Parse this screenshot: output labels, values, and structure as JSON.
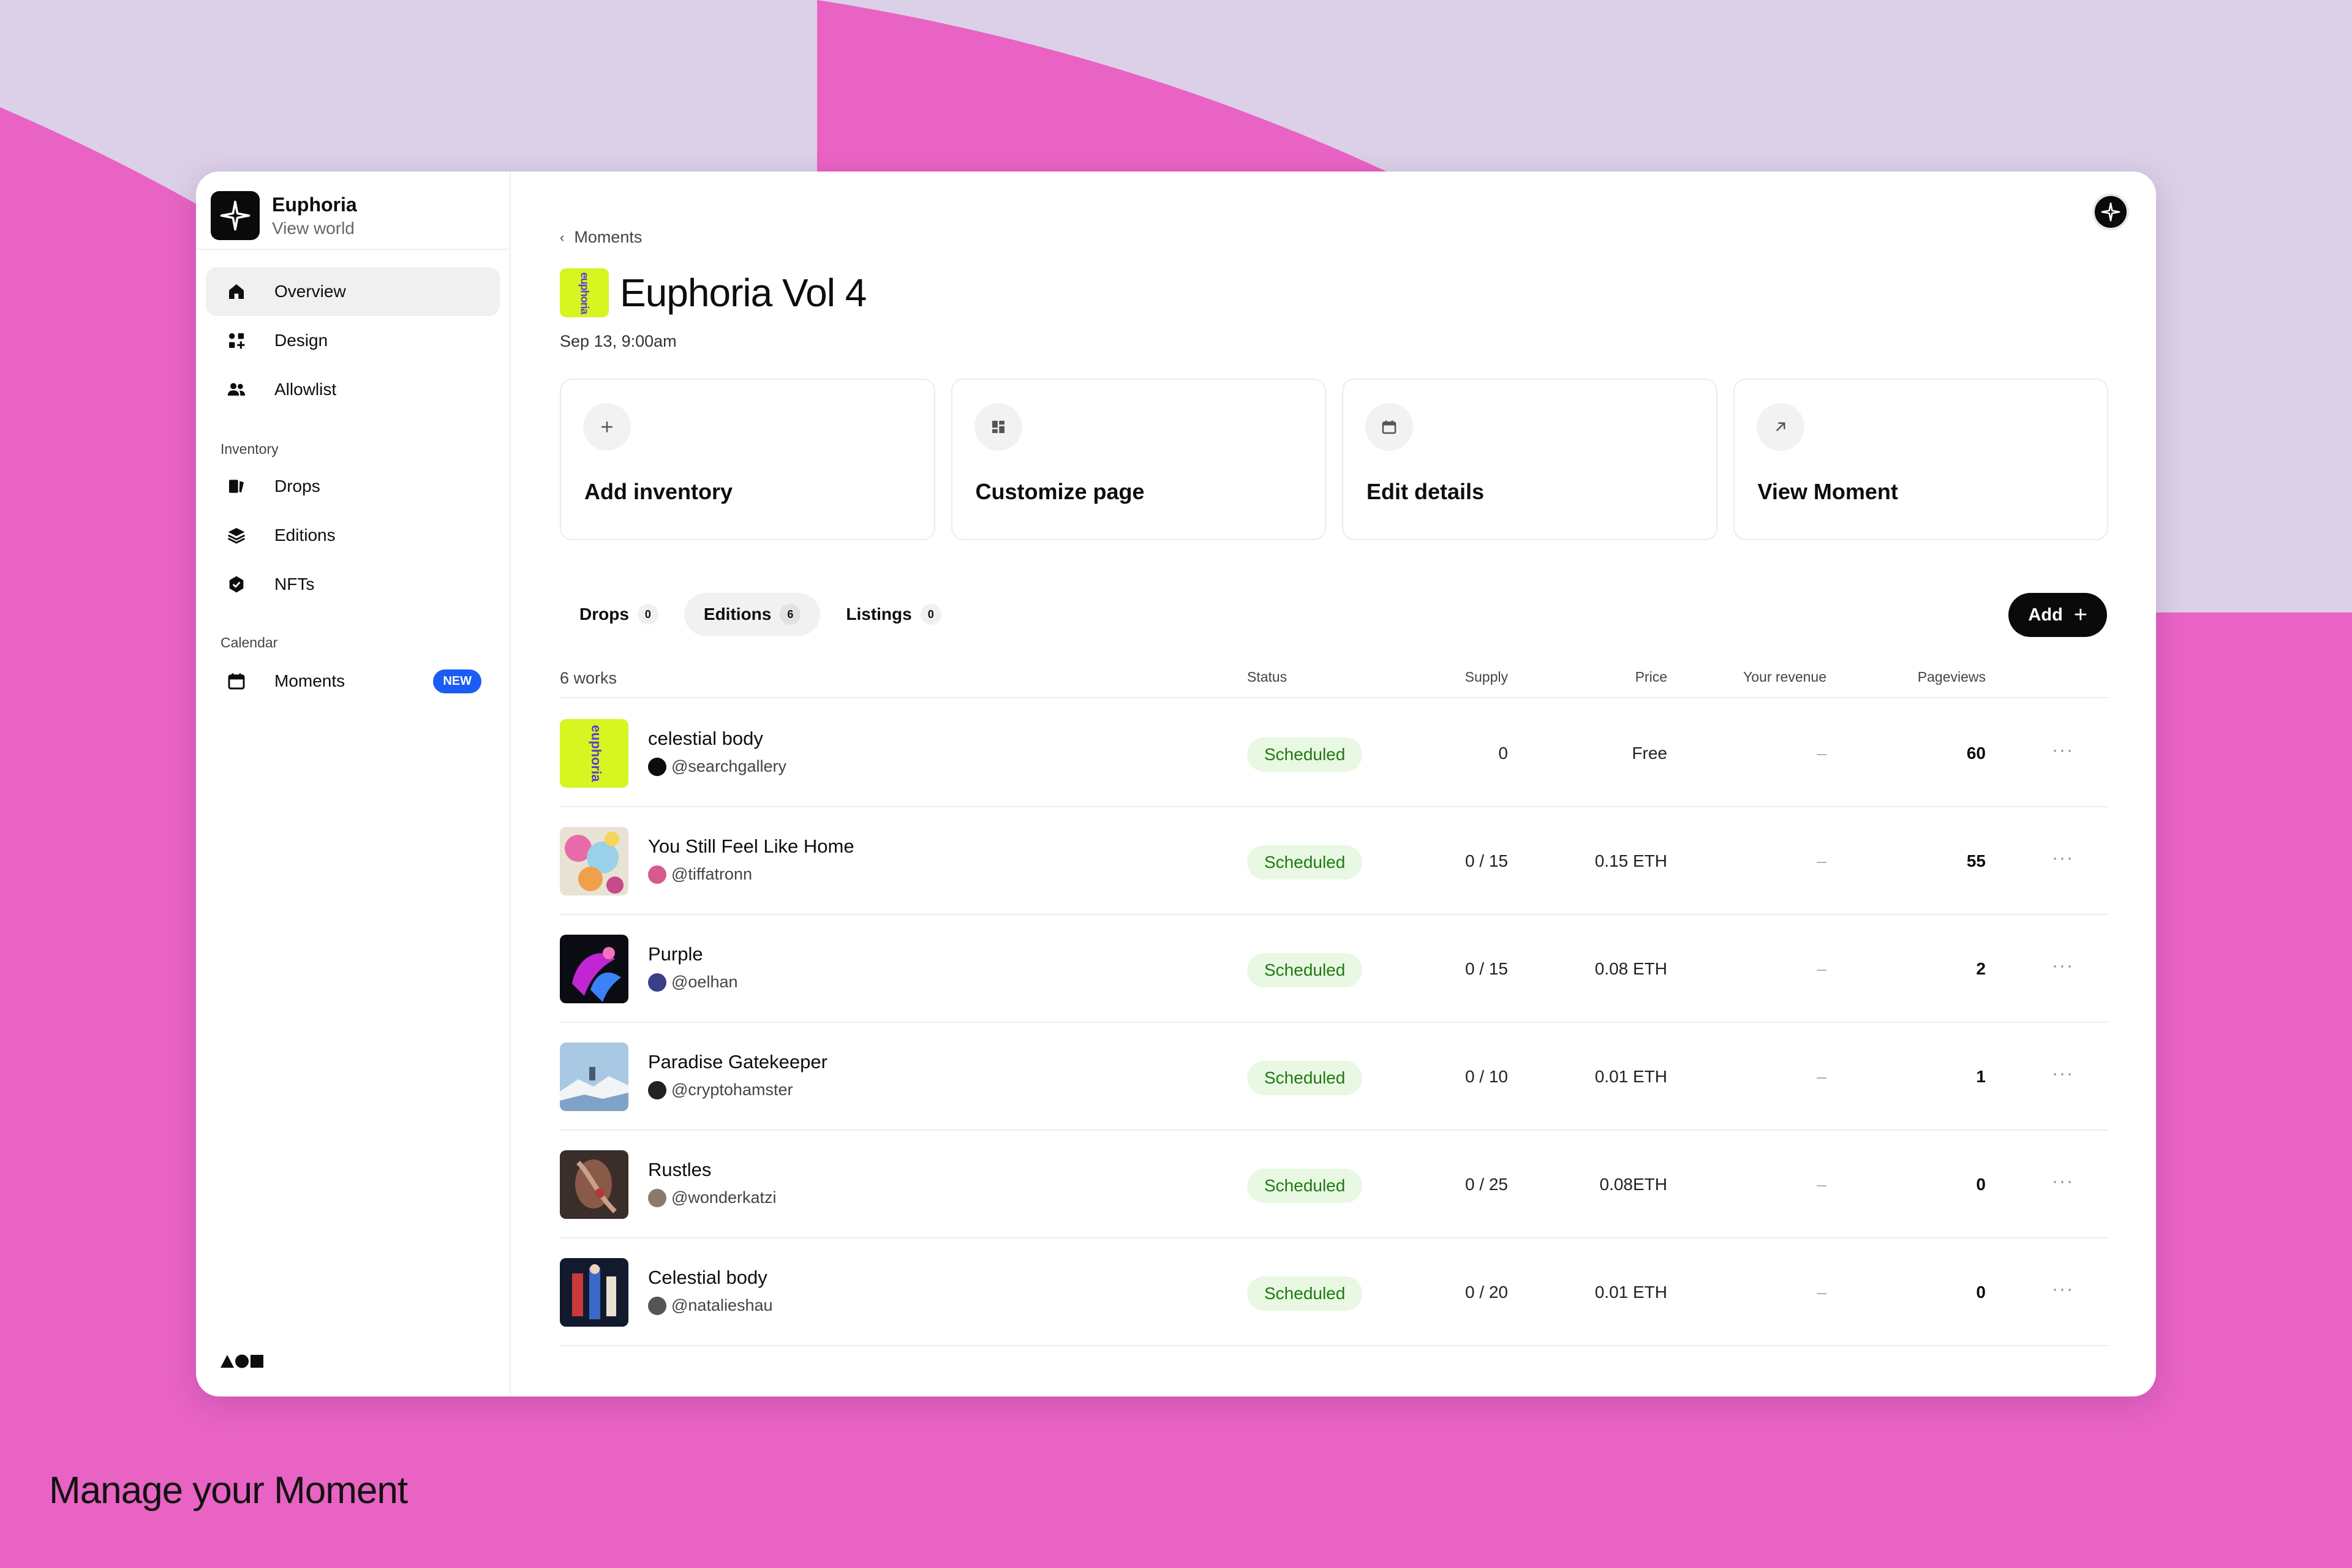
{
  "caption": "Manage your Moment",
  "sidebar": {
    "app_name": "Euphoria",
    "app_sub": "View world",
    "items": [
      {
        "label": "Overview",
        "icon": "home-icon"
      },
      {
        "label": "Design",
        "icon": "design-icon"
      },
      {
        "label": "Allowlist",
        "icon": "users-icon"
      }
    ],
    "section_inventory": "Inventory",
    "inventory_items": [
      {
        "label": "Drops",
        "icon": "drops-icon"
      },
      {
        "label": "Editions",
        "icon": "layers-icon"
      },
      {
        "label": "NFTs",
        "icon": "badge-icon"
      }
    ],
    "section_calendar": "Calendar",
    "calendar_items": [
      {
        "label": "Moments",
        "icon": "calendar-icon",
        "badge": "NEW"
      }
    ]
  },
  "main": {
    "breadcrumb": "Moments",
    "title": "Euphoria Vol 4",
    "cover_text": "euphoria",
    "date": "Sep 13, 9:00am",
    "actions": [
      {
        "label": "Add inventory",
        "icon": "plus-icon"
      },
      {
        "label": "Customize page",
        "icon": "grid-icon"
      },
      {
        "label": "Edit details",
        "icon": "calendar-icon"
      },
      {
        "label": "View Moment",
        "icon": "arrow-up-right-icon"
      }
    ],
    "tabs": [
      {
        "label": "Drops",
        "count": "0"
      },
      {
        "label": "Editions",
        "count": "6"
      },
      {
        "label": "Listings",
        "count": "0"
      }
    ],
    "add_label": "Add",
    "table": {
      "works_count": "6 works",
      "columns": {
        "status": "Status",
        "supply": "Supply",
        "price": "Price",
        "revenue": "Your revenue",
        "pageviews": "Pageviews"
      },
      "rows": [
        {
          "name": "celestial body",
          "user": "@searchgallery",
          "status": "Scheduled",
          "supply": "0",
          "price": "Free",
          "revenue": "–",
          "pageviews": "60"
        },
        {
          "name": "You Still Feel Like Home",
          "user": "@tiffatronn",
          "status": "Scheduled",
          "supply": "0 / 15",
          "price": "0.15 ETH",
          "revenue": "–",
          "pageviews": "55"
        },
        {
          "name": "Purple",
          "user": "@oelhan",
          "status": "Scheduled",
          "supply": "0 / 15",
          "price": "0.08 ETH",
          "revenue": "–",
          "pageviews": "2"
        },
        {
          "name": "Paradise Gatekeeper",
          "user": "@cryptohamster",
          "status": "Scheduled",
          "supply": "0 / 10",
          "price": "0.01 ETH",
          "revenue": "–",
          "pageviews": "1"
        },
        {
          "name": "Rustles",
          "user": "@wonderkatzi",
          "status": "Scheduled",
          "supply": "0 / 25",
          "price": "0.08ETH",
          "revenue": "–",
          "pageviews": "0"
        },
        {
          "name": "Celestial body",
          "user": "@natalieshau",
          "status": "Scheduled",
          "supply": "0 / 20",
          "price": "0.01 ETH",
          "revenue": "–",
          "pageviews": "0"
        }
      ]
    }
  },
  "colors": {
    "accent_pink": "#e963c4",
    "bg_lavender": "#dbd0e8",
    "status_green": "#1f7a12",
    "status_bg": "#e8f8e2",
    "new_badge": "#1b5cf5",
    "cover_lime": "#d7f521"
  }
}
